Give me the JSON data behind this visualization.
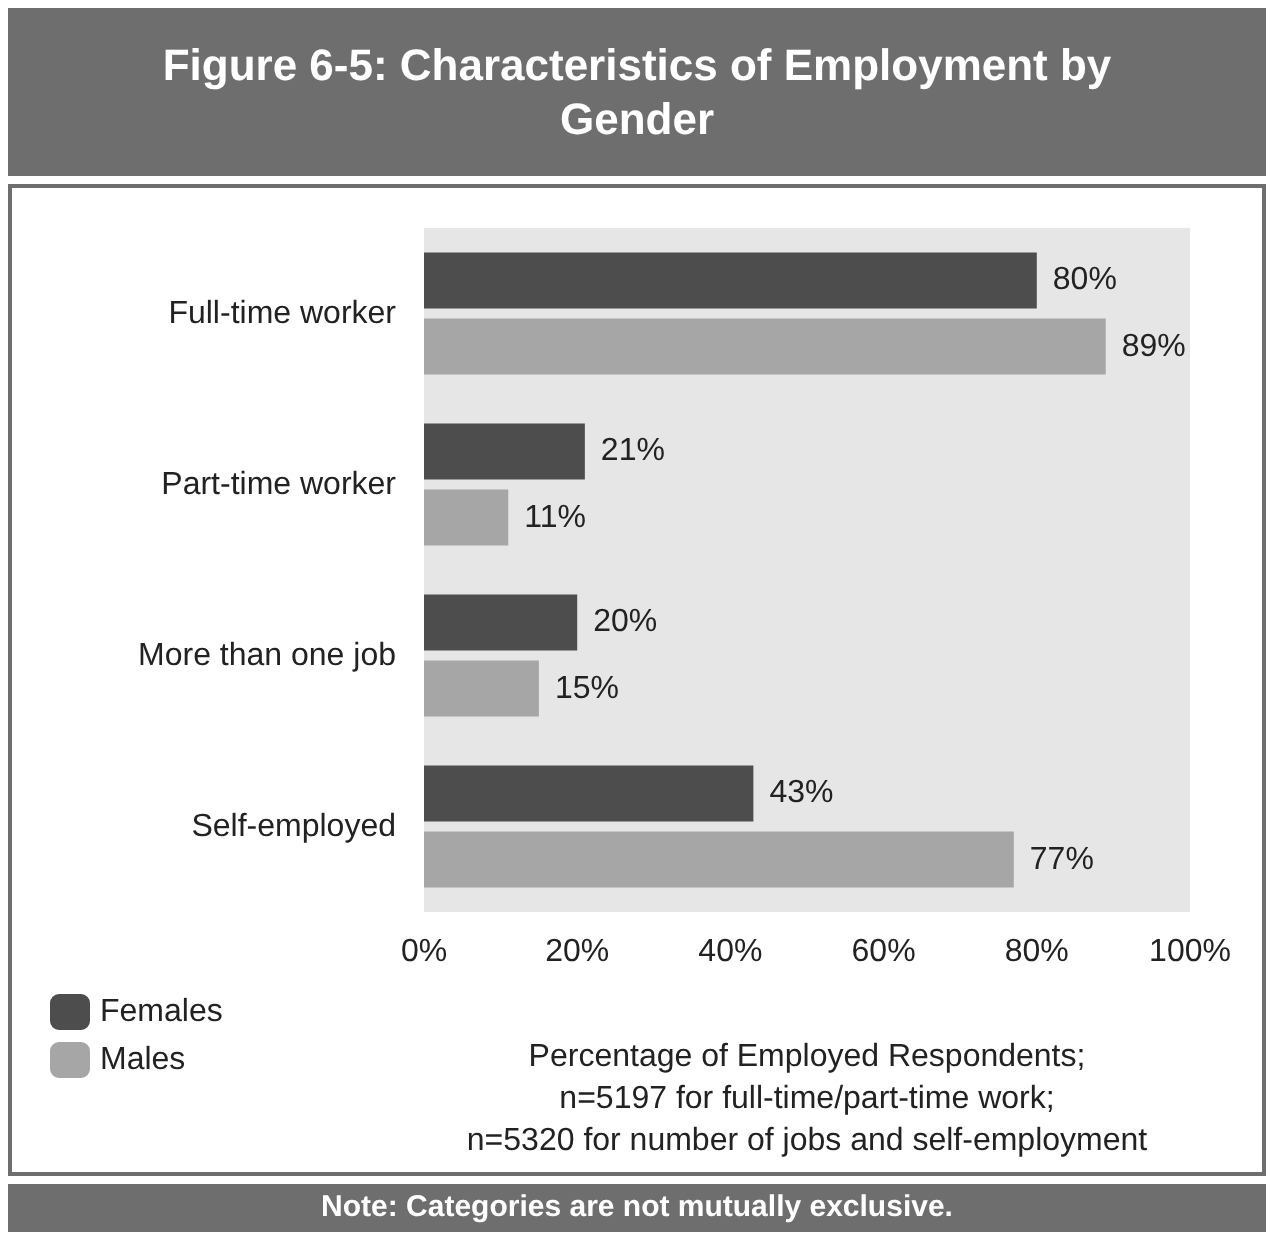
{
  "chart_data": {
    "type": "bar",
    "orientation": "horizontal",
    "title": "Figure 6-5: Characteristics of Employment by Gender",
    "xlabel": "Percentage of Employed Respondents;\nn=5197 for full-time/part-time work;\nn=5320 for number of jobs and self-employment",
    "annotations": [
      "Note: Categories are not mutually exclusive."
    ],
    "categories": [
      "Full-time worker",
      "Part-time worker",
      "More than one job",
      "Self-employed"
    ],
    "series": [
      {
        "name": "Females",
        "color": "#4d4d4d",
        "values": [
          80,
          21,
          20,
          43
        ],
        "value_labels": [
          "80%",
          "21%",
          "20%",
          "43%"
        ]
      },
      {
        "name": "Males",
        "color": "#a6a6a6",
        "values": [
          89,
          11,
          15,
          77
        ],
        "value_labels": [
          "89%",
          "11%",
          "15%",
          "77%"
        ]
      }
    ],
    "xlim": [
      0,
      100
    ],
    "xticks": [
      {
        "value": 0,
        "label": "0%"
      },
      {
        "value": 20,
        "label": "20%"
      },
      {
        "value": 40,
        "label": "40%"
      },
      {
        "value": 60,
        "label": "60%"
      },
      {
        "value": 80,
        "label": "80%"
      },
      {
        "value": 100,
        "label": "100%"
      }
    ],
    "grid": false,
    "legend": "bottom left"
  }
}
